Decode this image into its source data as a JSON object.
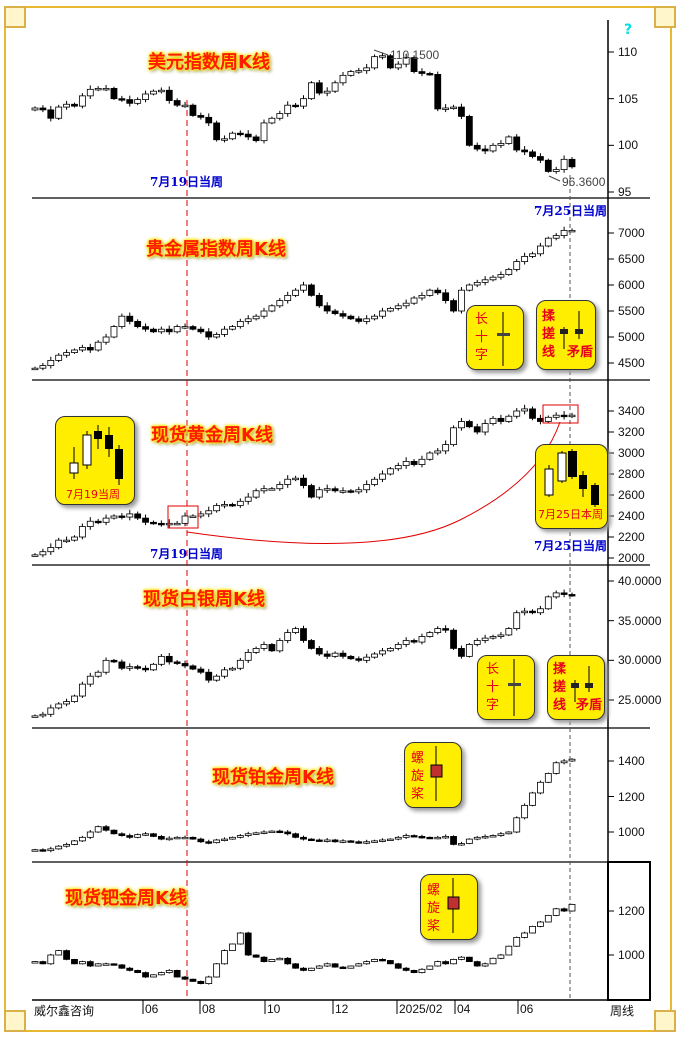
{
  "chart_data": [
    {
      "type": "candlestick",
      "title": "美元指数周K线",
      "yticks": [
        95,
        100,
        105,
        110
      ],
      "ylim": [
        94.5,
        112
      ],
      "annotations": {
        "high": "110.1500",
        "low": "96.3600"
      },
      "weekly_close": [
        104.0,
        103.8,
        102.9,
        104.1,
        104.4,
        104.2,
        105.3,
        106.0,
        106.1,
        106.1,
        105.0,
        104.9,
        104.5,
        104.9,
        105.5,
        105.8,
        105.9,
        104.8,
        104.3,
        104.3,
        103.2,
        103.0,
        102.4,
        100.6,
        100.7,
        101.3,
        101.2,
        100.9,
        100.5,
        102.4,
        102.9,
        103.4,
        104.3,
        104.2,
        105.0,
        106.7,
        105.6,
        105.8,
        106.7,
        107.5,
        107.9,
        108.0,
        108.3,
        109.5,
        109.6,
        108.3,
        108.7,
        109.4,
        107.9,
        107.7,
        107.6,
        103.9,
        104.0,
        104.1,
        103.1,
        100.0,
        99.6,
        99.4,
        100.0,
        100.2,
        100.9,
        99.5,
        99.3,
        98.8,
        98.4,
        97.2,
        97.4,
        98.5,
        97.7
      ]
    },
    {
      "type": "candlestick",
      "title": "贵金属指数周K线",
      "yticks": [
        4500,
        5000,
        5500,
        6000,
        6500,
        7000
      ],
      "weekly_close": [
        4400,
        4450,
        4550,
        4650,
        4700,
        4750,
        4800,
        4750,
        4900,
        5000,
        5200,
        5400,
        5300,
        5200,
        5150,
        5100,
        5150,
        5100,
        5200,
        5200,
        5150,
        5100,
        5000,
        5050,
        5150,
        5200,
        5300,
        5350,
        5400,
        5500,
        5600,
        5700,
        5800,
        5900,
        6000,
        5800,
        5600,
        5500,
        5450,
        5400,
        5350,
        5300,
        5350,
        5400,
        5500,
        5550,
        5600,
        5650,
        5750,
        5800,
        5900,
        5850,
        5700,
        5500,
        5900,
        6000,
        6050,
        6100,
        6150,
        6200,
        6300,
        6450,
        6550,
        6600,
        6750,
        6900,
        6950,
        7050,
        7050
      ]
    },
    {
      "type": "candlestick",
      "title": "现货黄金周K线",
      "yticks": [
        2000,
        2200,
        2400,
        2600,
        2800,
        3000,
        3200,
        3400
      ],
      "weekly_close": [
        2030,
        2060,
        2100,
        2170,
        2170,
        2200,
        2300,
        2350,
        2340,
        2380,
        2400,
        2390,
        2420,
        2380,
        2340,
        2330,
        2320,
        2330,
        2330,
        2400,
        2400,
        2420,
        2450,
        2500,
        2510,
        2500,
        2540,
        2580,
        2640,
        2660,
        2660,
        2700,
        2750,
        2760,
        2690,
        2580,
        2650,
        2660,
        2640,
        2640,
        2630,
        2650,
        2700,
        2750,
        2800,
        2850,
        2880,
        2920,
        2890,
        2940,
        3000,
        3020,
        3080,
        3240,
        3300,
        3250,
        3200,
        3280,
        3330,
        3300,
        3350,
        3400,
        3420,
        3330,
        3300,
        3340,
        3360,
        3350,
        3360
      ]
    },
    {
      "type": "candlestick",
      "title": "现货白银周K线",
      "yticks": [
        "25.0000",
        "30.0000",
        "35.0000",
        "40.0000"
      ],
      "weekly_close": [
        23.0,
        23.2,
        24.0,
        24.5,
        24.8,
        25.5,
        27.0,
        28.0,
        28.5,
        30.0,
        29.8,
        29.0,
        29.2,
        29.0,
        28.8,
        29.5,
        30.5,
        29.8,
        29.6,
        29.3,
        28.9,
        28.5,
        27.5,
        28.0,
        28.8,
        29.0,
        30.0,
        31.0,
        31.5,
        32.0,
        31.2,
        32.5,
        33.5,
        34.0,
        32.5,
        31.5,
        30.8,
        30.5,
        30.9,
        30.5,
        30.2,
        30.0,
        30.4,
        30.8,
        31.2,
        31.5,
        32.0,
        32.5,
        32.3,
        33.0,
        33.5,
        34.0,
        33.8,
        31.5,
        30.5,
        32.0,
        32.5,
        32.8,
        33.0,
        33.2,
        34.0,
        36.0,
        36.2,
        36.0,
        36.5,
        38.0,
        38.5,
        38.3,
        38.2
      ]
    },
    {
      "type": "candlestick",
      "title": "现货铂金周K线",
      "yticks": [
        1000,
        1200,
        1400
      ],
      "weekly_close": [
        900,
        895,
        905,
        920,
        930,
        950,
        970,
        1000,
        1030,
        1010,
        990,
        980,
        970,
        985,
        990,
        975,
        960,
        965,
        970,
        970,
        960,
        945,
        940,
        955,
        960,
        970,
        980,
        990,
        995,
        1000,
        1005,
        1000,
        990,
        970,
        960,
        955,
        950,
        955,
        945,
        950,
        945,
        940,
        945,
        950,
        955,
        960,
        970,
        980,
        975,
        970,
        965,
        970,
        975,
        930,
        935,
        960,
        970,
        975,
        980,
        990,
        1000,
        1080,
        1150,
        1220,
        1280,
        1330,
        1390,
        1400,
        1410
      ]
    },
    {
      "type": "candlestick",
      "title": "现货钯金周K线",
      "yticks": [
        1000,
        1200
      ],
      "weekly_close": [
        970,
        960,
        1000,
        1020,
        980,
        960,
        970,
        950,
        960,
        960,
        955,
        940,
        930,
        920,
        900,
        910,
        920,
        930,
        900,
        890,
        880,
        870,
        900,
        960,
        1020,
        1050,
        1100,
        1000,
        990,
        970,
        980,
        985,
        960,
        940,
        930,
        940,
        950,
        960,
        945,
        940,
        950,
        960,
        970,
        980,
        975,
        960,
        940,
        930,
        920,
        935,
        950,
        970,
        960,
        980,
        990,
        970,
        950,
        960,
        985,
        1000,
        1040,
        1080,
        1100,
        1130,
        1150,
        1180,
        1210,
        1200,
        1230
      ]
    }
  ],
  "xaxis": {
    "labels": [
      "06",
      "08",
      "10",
      "12",
      "2025/02",
      "04",
      "06"
    ],
    "period": "周线",
    "brand": "威尔鑫咨询"
  },
  "markers": {
    "week1": "7月19日当周",
    "week2": "7月25日当周",
    "gold_box_left": "7月19当周",
    "gold_box_right": "7月25日本周"
  },
  "patterns": {
    "long_cross": [
      "长",
      "十",
      "字"
    ],
    "rub_line": [
      "揉",
      "搓",
      "线"
    ],
    "contradiction": "矛盾",
    "propeller": [
      "螺",
      "旋",
      "桨"
    ]
  },
  "help_icon": "?",
  "colors": {
    "title": "#ff1a00",
    "marker": "#0000cc",
    "box": "#ffee00",
    "dashed": "#e00000"
  }
}
